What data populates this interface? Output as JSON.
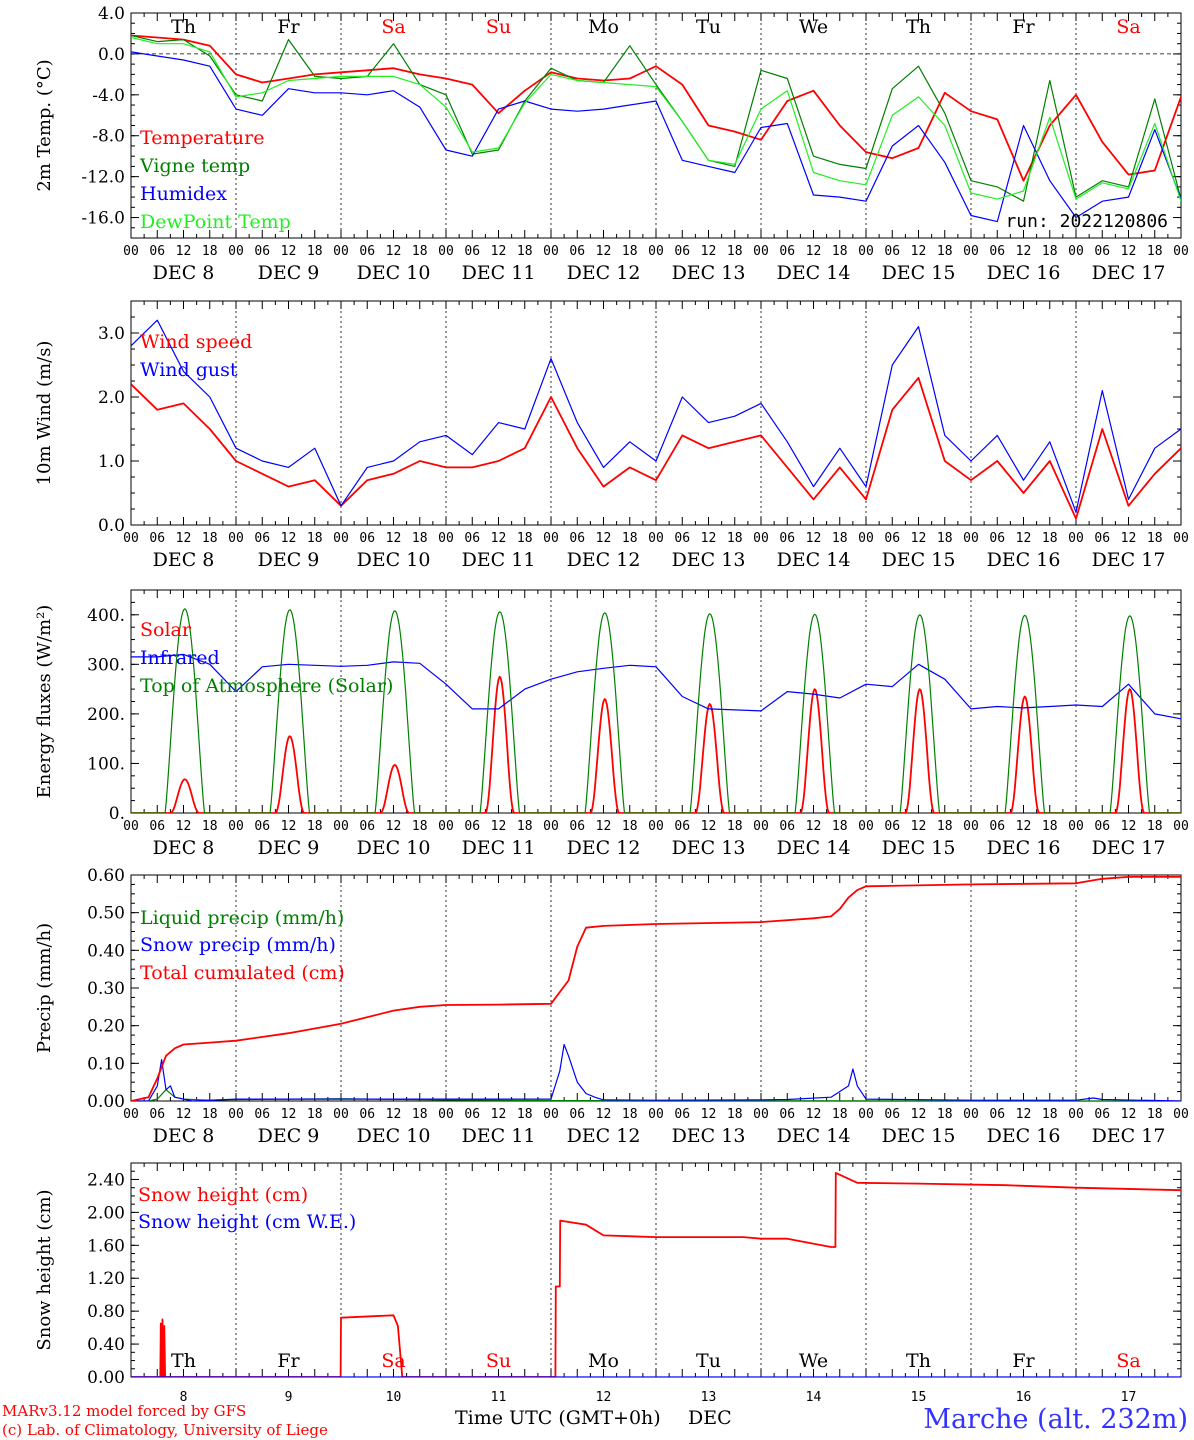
{
  "colors": {
    "red": "#ff0000",
    "green": "#008000",
    "blue": "#0000ff",
    "lightgreen": "#22ee22",
    "axis": "#000000"
  },
  "x_axis": {
    "hour_ticks": [
      "00",
      "06",
      "12",
      "18"
    ],
    "dates": [
      "DEC 8",
      "DEC 9",
      "DEC 10",
      "DEC 11",
      "DEC 12",
      "DEC 13",
      "DEC 14",
      "DEC 15",
      "DEC 16",
      "DEC 17"
    ],
    "weekdays": [
      "Th",
      "Fr",
      "Sa",
      "Su",
      "Mo",
      "Tu",
      "We",
      "Th",
      "Fr",
      "Sa"
    ],
    "weekend_weekdays": [
      "Sa",
      "Su"
    ],
    "day_numbers": [
      "8",
      "9",
      "10",
      "11",
      "12",
      "13",
      "14",
      "15",
      "16",
      "17"
    ],
    "title": "Time UTC (GMT+0h)",
    "month": "DEC"
  },
  "run_label": "run: 2022120806",
  "footer": {
    "model_line": "MARv3.12 model forced by GFS",
    "lab_line": "(c) Lab. of Climatology, University of Liege",
    "station": "Marche (alt. 232m)"
  },
  "chart_data": [
    {
      "type": "line",
      "ylabel": "2m Temp. (°C)",
      "ylim": [
        -18,
        4
      ],
      "y_ticks": [
        "4.0",
        "0.0",
        "-4.0",
        "-8.0",
        "-12.0",
        "-16.0"
      ],
      "y_tick_values": [
        4,
        0,
        -4,
        -8,
        -12,
        -16
      ],
      "zero_line": true,
      "x_unit": "hours since Dec 8 00 UTC",
      "series": [
        {
          "name": "Temperature",
          "color": "red",
          "x": [
            0,
            6,
            12,
            18,
            24,
            30,
            36,
            42,
            48,
            54,
            60,
            66,
            72,
            78,
            84,
            90,
            96,
            102,
            108,
            114,
            120,
            126,
            132,
            138,
            144,
            150,
            156,
            162,
            168,
            174,
            180,
            186,
            192,
            198,
            204,
            210,
            216,
            222,
            228,
            234,
            240
          ],
          "y": [
            1.8,
            1.6,
            1.4,
            0.8,
            -2.0,
            -2.8,
            -2.4,
            -2.0,
            -1.8,
            -1.6,
            -1.4,
            -2.0,
            -2.4,
            -3.0,
            -5.8,
            -3.6,
            -1.8,
            -2.4,
            -2.6,
            -2.4,
            -1.2,
            -3.0,
            -7.0,
            -7.6,
            -8.4,
            -4.6,
            -3.6,
            -7.0,
            -9.6,
            -10.2,
            -9.2,
            -3.8,
            -5.6,
            -6.4,
            -12.4,
            -7.0,
            -4.0,
            -8.6,
            -11.8,
            -11.4,
            -4.2
          ]
        },
        {
          "name": "Vigne temp",
          "color": "green",
          "x": [
            0,
            6,
            12,
            18,
            24,
            30,
            36,
            42,
            48,
            54,
            60,
            66,
            72,
            78,
            84,
            90,
            96,
            102,
            108,
            114,
            120,
            126,
            132,
            138,
            144,
            150,
            156,
            162,
            168,
            174,
            180,
            186,
            192,
            198,
            204,
            210,
            216,
            222,
            228,
            234,
            240
          ],
          "y": [
            1.8,
            1.2,
            1.4,
            -0.2,
            -4.0,
            -4.6,
            1.4,
            -2.2,
            -2.4,
            -2.2,
            1.0,
            -3.0,
            -4.0,
            -9.8,
            -9.4,
            -4.6,
            -1.4,
            -2.6,
            -2.8,
            0.8,
            -3.0,
            -6.6,
            -10.4,
            -11.0,
            -1.6,
            -2.4,
            -10.0,
            -10.8,
            -11.2,
            -3.4,
            -1.2,
            -5.8,
            -12.4,
            -13.0,
            -14.4,
            -2.6,
            -14.0,
            -12.4,
            -13.0,
            -4.4,
            -14.2
          ]
        },
        {
          "name": "Humidex",
          "color": "blue",
          "x": [
            0,
            6,
            12,
            18,
            24,
            30,
            36,
            42,
            48,
            54,
            60,
            66,
            72,
            78,
            84,
            90,
            96,
            102,
            108,
            114,
            120,
            126,
            132,
            138,
            144,
            150,
            156,
            162,
            168,
            174,
            180,
            186,
            192,
            198,
            204,
            210,
            216,
            222,
            228,
            234,
            240
          ],
          "y": [
            0.2,
            -0.2,
            -0.6,
            -1.2,
            -5.4,
            -6.0,
            -3.4,
            -3.8,
            -3.8,
            -4.0,
            -3.6,
            -5.2,
            -9.4,
            -10.0,
            -5.4,
            -4.6,
            -5.4,
            -5.6,
            -5.4,
            -5.0,
            -4.6,
            -10.4,
            -11.0,
            -11.6,
            -7.2,
            -6.8,
            -13.8,
            -14.0,
            -14.4,
            -9.0,
            -7.0,
            -10.6,
            -15.8,
            -16.4,
            -7.0,
            -12.4,
            -16.0,
            -14.4,
            -14.0,
            -7.4,
            -14.2
          ]
        },
        {
          "name": "DewPoint Temp",
          "color": "lightgreen",
          "x": [
            0,
            6,
            12,
            18,
            24,
            30,
            36,
            42,
            48,
            54,
            60,
            66,
            72,
            78,
            84,
            90,
            96,
            102,
            108,
            114,
            120,
            126,
            132,
            138,
            144,
            150,
            156,
            162,
            168,
            174,
            180,
            186,
            192,
            198,
            204,
            210,
            216,
            222,
            228,
            234,
            240
          ],
          "y": [
            1.6,
            1.0,
            1.0,
            0.2,
            -4.2,
            -3.8,
            -2.6,
            -2.4,
            -2.2,
            -2.2,
            -2.2,
            -3.0,
            -5.2,
            -9.6,
            -9.2,
            -4.8,
            -2.0,
            -2.6,
            -2.8,
            -3.0,
            -3.2,
            -6.6,
            -10.4,
            -10.8,
            -5.4,
            -3.6,
            -11.6,
            -12.4,
            -12.8,
            -6.0,
            -4.2,
            -7.0,
            -13.6,
            -14.2,
            -13.4,
            -6.2,
            -14.2,
            -12.6,
            -13.2,
            -6.8,
            -14.4
          ]
        }
      ]
    },
    {
      "type": "line",
      "ylabel": "10m Wind (m/s)",
      "ylim": [
        0,
        3.5
      ],
      "y_ticks": [
        "3.0",
        "2.0",
        "1.0",
        "0.0"
      ],
      "y_tick_values": [
        3,
        2,
        1,
        0
      ],
      "series": [
        {
          "name": "Wind speed",
          "color": "red",
          "x": [
            0,
            6,
            12,
            18,
            24,
            30,
            36,
            42,
            48,
            54,
            60,
            66,
            72,
            78,
            84,
            90,
            96,
            102,
            108,
            114,
            120,
            126,
            132,
            138,
            144,
            150,
            156,
            162,
            168,
            174,
            180,
            186,
            192,
            198,
            204,
            210,
            216,
            222,
            228,
            234,
            240
          ],
          "y": [
            2.2,
            1.8,
            1.9,
            1.5,
            1.0,
            0.8,
            0.6,
            0.7,
            0.3,
            0.7,
            0.8,
            1.0,
            0.9,
            0.9,
            1.0,
            1.2,
            2.0,
            1.2,
            0.6,
            0.9,
            0.7,
            1.4,
            1.2,
            1.3,
            1.4,
            0.9,
            0.4,
            0.9,
            0.4,
            1.8,
            2.3,
            1.0,
            0.7,
            1.0,
            0.5,
            1.0,
            0.1,
            1.5,
            0.3,
            0.8,
            1.2
          ]
        },
        {
          "name": "Wind gust",
          "color": "blue",
          "x": [
            0,
            6,
            12,
            18,
            24,
            30,
            36,
            42,
            48,
            54,
            60,
            66,
            72,
            78,
            84,
            90,
            96,
            102,
            108,
            114,
            120,
            126,
            132,
            138,
            144,
            150,
            156,
            162,
            168,
            174,
            180,
            186,
            192,
            198,
            204,
            210,
            216,
            222,
            228,
            234,
            240
          ],
          "y": [
            2.8,
            3.2,
            2.4,
            2.0,
            1.2,
            1.0,
            0.9,
            1.2,
            0.3,
            0.9,
            1.0,
            1.3,
            1.4,
            1.1,
            1.6,
            1.5,
            2.6,
            1.6,
            0.9,
            1.3,
            1.0,
            2.0,
            1.6,
            1.7,
            1.9,
            1.3,
            0.6,
            1.2,
            0.6,
            2.5,
            3.1,
            1.4,
            1.0,
            1.4,
            0.7,
            1.3,
            0.2,
            2.1,
            0.4,
            1.2,
            1.5
          ]
        }
      ]
    },
    {
      "type": "line",
      "ylabel": "Energy fluxes (W/m²)",
      "ylim": [
        0,
        450
      ],
      "y_ticks": [
        "400.",
        "300.",
        "200.",
        "100.",
        "0."
      ],
      "y_tick_values": [
        400,
        300,
        200,
        100,
        0
      ],
      "series": [
        {
          "name": "Solar",
          "color": "red",
          "daily_peak": [
            68,
            155,
            97,
            275,
            230,
            220,
            250,
            250,
            235,
            250
          ]
        },
        {
          "name": "Infrared",
          "color": "blue",
          "x": [
            0,
            6,
            12,
            18,
            24,
            30,
            36,
            42,
            48,
            54,
            60,
            66,
            72,
            78,
            84,
            90,
            96,
            102,
            108,
            114,
            120,
            126,
            132,
            138,
            144,
            150,
            156,
            162,
            168,
            174,
            180,
            186,
            192,
            198,
            204,
            210,
            216,
            222,
            228,
            234,
            240
          ],
          "y": [
            315,
            315,
            320,
            300,
            245,
            295,
            300,
            298,
            296,
            298,
            305,
            302,
            260,
            210,
            210,
            250,
            270,
            285,
            292,
            298,
            295,
            235,
            210,
            208,
            206,
            245,
            240,
            232,
            260,
            255,
            300,
            270,
            210,
            215,
            212,
            215,
            218,
            215,
            260,
            200,
            190
          ]
        },
        {
          "name": "Top of Atmosphere (Solar)",
          "color": "green",
          "daily_peak": [
            412,
            410,
            408,
            406,
            404,
            402,
            401,
            400,
            399,
            398
          ]
        }
      ]
    },
    {
      "type": "line",
      "ylabel": "Precip (mm/h)",
      "ylim": [
        0,
        0.6
      ],
      "y_ticks": [
        "0.60",
        "0.50",
        "0.40",
        "0.30",
        "0.20",
        "0.10",
        "0.00"
      ],
      "y_tick_values": [
        0.6,
        0.5,
        0.4,
        0.3,
        0.2,
        0.1,
        0.0
      ],
      "series": [
        {
          "name": "Liquid precip (mm/h)",
          "color": "green",
          "x": [
            0,
            4,
            6,
            8,
            10,
            12,
            18,
            24,
            48,
            72,
            96,
            240
          ],
          "y": [
            0,
            0,
            0.005,
            0.03,
            0.01,
            0.005,
            0.002,
            0.004,
            0.006,
            0.003,
            0.001,
            0
          ]
        },
        {
          "name": "Snow precip (mm/h)",
          "color": "blue",
          "x": [
            0,
            4,
            6,
            7,
            8,
            9,
            10,
            12,
            14,
            24,
            48,
            96,
            98,
            99,
            100,
            102,
            104,
            106,
            108,
            120,
            144,
            150,
            160,
            164,
            165,
            166,
            168,
            192,
            216,
            220,
            222,
            240
          ],
          "y": [
            0,
            0,
            0.04,
            0.11,
            0.03,
            0.04,
            0.01,
            0.005,
            0,
            0.005,
            0.005,
            0.005,
            0.08,
            0.15,
            0.12,
            0.05,
            0.02,
            0.01,
            0.003,
            0.002,
            0.003,
            0.004,
            0.01,
            0.04,
            0.085,
            0.04,
            0.005,
            0.002,
            0.002,
            0.008,
            0.004,
            0
          ]
        },
        {
          "name": "Total cumulated (cm)",
          "color": "red",
          "x": [
            0,
            4,
            6,
            8,
            10,
            12,
            18,
            24,
            36,
            48,
            60,
            66,
            72,
            84,
            96,
            100,
            102,
            104,
            108,
            120,
            144,
            156,
            160,
            162,
            164,
            166,
            168,
            192,
            216,
            222,
            228,
            240
          ],
          "y": [
            0,
            0.01,
            0.06,
            0.12,
            0.14,
            0.15,
            0.155,
            0.16,
            0.18,
            0.205,
            0.24,
            0.25,
            0.255,
            0.256,
            0.258,
            0.32,
            0.41,
            0.46,
            0.465,
            0.47,
            0.475,
            0.485,
            0.49,
            0.51,
            0.54,
            0.56,
            0.57,
            0.575,
            0.578,
            0.59,
            0.595,
            0.595
          ]
        }
      ]
    },
    {
      "type": "line",
      "ylabel": "Snow height (cm)",
      "ylim": [
        0,
        2.6
      ],
      "y_ticks": [
        "2.40",
        "2.00",
        "1.60",
        "1.20",
        "0.80",
        "0.40",
        "0.00"
      ],
      "y_tick_values": [
        2.4,
        2.0,
        1.6,
        1.2,
        0.8,
        0.4,
        0.0
      ],
      "series": [
        {
          "name": "Snow height (cm)",
          "color": "red",
          "x": [
            0,
            6.7,
            6.8,
            7.0,
            7.2,
            7.4,
            7.6,
            7.8,
            8.0,
            24,
            47.9,
            48,
            60,
            61,
            62,
            96,
            97,
            97.1,
            98,
            98.1,
            104,
            108,
            120,
            140,
            144,
            150,
            160,
            161,
            161.1,
            166,
            180,
            200,
            216,
            240
          ],
          "y": [
            0,
            0,
            0.65,
            0.0,
            0.7,
            0.0,
            0.62,
            0.0,
            0,
            0,
            0,
            0.72,
            0.75,
            0.62,
            0,
            0,
            0,
            1.1,
            1.1,
            1.9,
            1.85,
            1.72,
            1.7,
            1.7,
            1.68,
            1.68,
            1.58,
            1.58,
            2.48,
            2.36,
            2.35,
            2.33,
            2.3,
            2.27
          ]
        },
        {
          "name": "Snow height (cm W.E.)",
          "color": "blue",
          "x": [
            0,
            240
          ],
          "y": [
            0,
            0
          ]
        }
      ]
    }
  ]
}
